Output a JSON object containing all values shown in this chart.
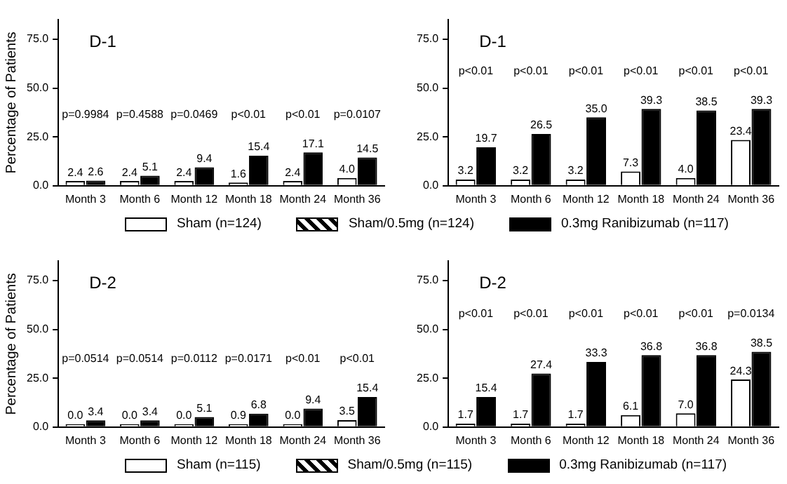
{
  "chart_data": [
    {
      "type": "bar",
      "title": "D-1",
      "ylabel": "Percentage of Patients",
      "categories": [
        "Month 3",
        "Month 6",
        "Month 12",
        "Month 18",
        "Month 24",
        "Month 36"
      ],
      "ylim": [
        0,
        85
      ],
      "yticks": [
        {
          "value": 0,
          "label": "0.0"
        },
        {
          "value": 25,
          "label": "25.0"
        },
        {
          "value": 50,
          "label": "50.0"
        },
        {
          "value": 75,
          "label": "75.0"
        }
      ],
      "grid": false,
      "legend": "bottom",
      "series": [
        {
          "name": "Sham (n=124)",
          "color": "#ffffff",
          "values": [
            2.4,
            2.4,
            2.4,
            1.6,
            2.4,
            null
          ],
          "value_labels": [
            "2.4",
            "2.4",
            "2.4",
            "1.6",
            "2.4",
            null
          ]
        },
        {
          "name": "Sham/0.5mg (n=124)",
          "color": "#ffffff",
          "values": [
            null,
            null,
            null,
            null,
            null,
            4.0
          ],
          "value_labels": [
            null,
            null,
            null,
            null,
            null,
            "4.0"
          ]
        },
        {
          "name": "0.3mg Ranibizumab (n=117)",
          "color": "#000000",
          "values": [
            2.6,
            5.1,
            9.4,
            15.4,
            17.1,
            14.5
          ],
          "value_labels": [
            "2.6",
            "5.1",
            "9.4",
            "15.4",
            "17.1",
            "14.5"
          ]
        }
      ],
      "annotations": [
        "p=0.9984",
        "p=0.4588",
        "p=0.0469",
        "p<0.01",
        "p<0.01",
        "p=0.0107"
      ]
    },
    {
      "type": "bar",
      "title": "D-1",
      "categories": [
        "Month 3",
        "Month 6",
        "Month 12",
        "Month 18",
        "Month 24",
        "Month 36"
      ],
      "ylim": [
        0,
        85
      ],
      "yticks": [
        {
          "value": 0,
          "label": "0.0"
        },
        {
          "value": 25,
          "label": "25.0"
        },
        {
          "value": 50,
          "label": "50.0"
        },
        {
          "value": 75,
          "label": "75.0"
        }
      ],
      "grid": false,
      "series": [
        {
          "color": "#ffffff",
          "values": [
            3.2,
            3.2,
            3.2,
            7.3,
            4.0,
            null
          ],
          "value_labels": [
            "3.2",
            "3.2",
            "3.2",
            "7.3",
            "4.0",
            null
          ]
        },
        {
          "color": "#ffffff",
          "values": [
            null,
            null,
            null,
            null,
            null,
            23.4
          ],
          "value_labels": [
            null,
            null,
            null,
            null,
            null,
            "23.4"
          ]
        },
        {
          "color": "#000000",
          "values": [
            19.7,
            26.5,
            35.0,
            39.3,
            38.5,
            39.3
          ],
          "value_labels": [
            "19.7",
            "26.5",
            "35.0",
            "39.3",
            "38.5",
            "39.3"
          ]
        }
      ],
      "annotations": [
        "p<0.01",
        "p<0.01",
        "p<0.01",
        "p<0.01",
        "p<0.01",
        "p<0.01"
      ]
    },
    {
      "type": "bar",
      "title": "D-2",
      "ylabel": "Percentage of Patients",
      "categories": [
        "Month 3",
        "Month 6",
        "Month 12",
        "Month 18",
        "Month 24",
        "Month 36"
      ],
      "ylim": [
        0,
        85
      ],
      "yticks": [
        {
          "value": 0,
          "label": "0.0"
        },
        {
          "value": 25,
          "label": "25.0"
        },
        {
          "value": 50,
          "label": "50.0"
        },
        {
          "value": 75,
          "label": "75.0"
        }
      ],
      "grid": false,
      "legend": "bottom",
      "series": [
        {
          "name": "Sham (n=115)",
          "color": "#ffffff",
          "values": [
            0.0,
            0.0,
            0.0,
            0.9,
            0.0,
            null
          ],
          "value_labels": [
            "0.0",
            "0.0",
            "0.0",
            "0.9",
            "0.0",
            null
          ]
        },
        {
          "name": "Sham/0.5mg (n=115)",
          "color": "#ffffff",
          "values": [
            null,
            null,
            null,
            null,
            null,
            3.5
          ],
          "value_labels": [
            null,
            null,
            null,
            null,
            null,
            "3.5"
          ]
        },
        {
          "name": "0.3mg Ranibizumab (n=117)",
          "color": "#000000",
          "values": [
            3.4,
            3.4,
            5.1,
            6.8,
            9.4,
            15.4
          ],
          "value_labels": [
            "3.4",
            "3.4",
            "5.1",
            "6.8",
            "9.4",
            "15.4"
          ]
        }
      ],
      "annotations": [
        "p=0.0514",
        "p=0.0514",
        "p=0.0112",
        "p=0.0171",
        "p<0.01",
        "p<0.01"
      ]
    },
    {
      "type": "bar",
      "title": "D-2",
      "categories": [
        "Month 3",
        "Month 6",
        "Month 12",
        "Month 18",
        "Month 24",
        "Month 36"
      ],
      "ylim": [
        0,
        85
      ],
      "yticks": [
        {
          "value": 0,
          "label": "0.0"
        },
        {
          "value": 25,
          "label": "25.0"
        },
        {
          "value": 50,
          "label": "50.0"
        },
        {
          "value": 75,
          "label": "75.0"
        }
      ],
      "grid": false,
      "series": [
        {
          "color": "#ffffff",
          "values": [
            1.7,
            1.7,
            1.7,
            6.1,
            7.0,
            null
          ],
          "value_labels": [
            "1.7",
            "1.7",
            "1.7",
            "6.1",
            "7.0",
            null
          ]
        },
        {
          "color": "#ffffff",
          "values": [
            null,
            null,
            null,
            null,
            null,
            24.3
          ],
          "value_labels": [
            null,
            null,
            null,
            null,
            null,
            "24.3"
          ]
        },
        {
          "color": "#000000",
          "values": [
            15.4,
            27.4,
            33.3,
            36.8,
            36.8,
            38.5
          ],
          "value_labels": [
            "15.4",
            "27.4",
            "33.3",
            "36.8",
            "36.8",
            "38.5"
          ]
        }
      ],
      "annotations": [
        "p<0.01",
        "p<0.01",
        "p<0.01",
        "p<0.01",
        "p<0.01",
        "p=0.0134"
      ]
    }
  ]
}
